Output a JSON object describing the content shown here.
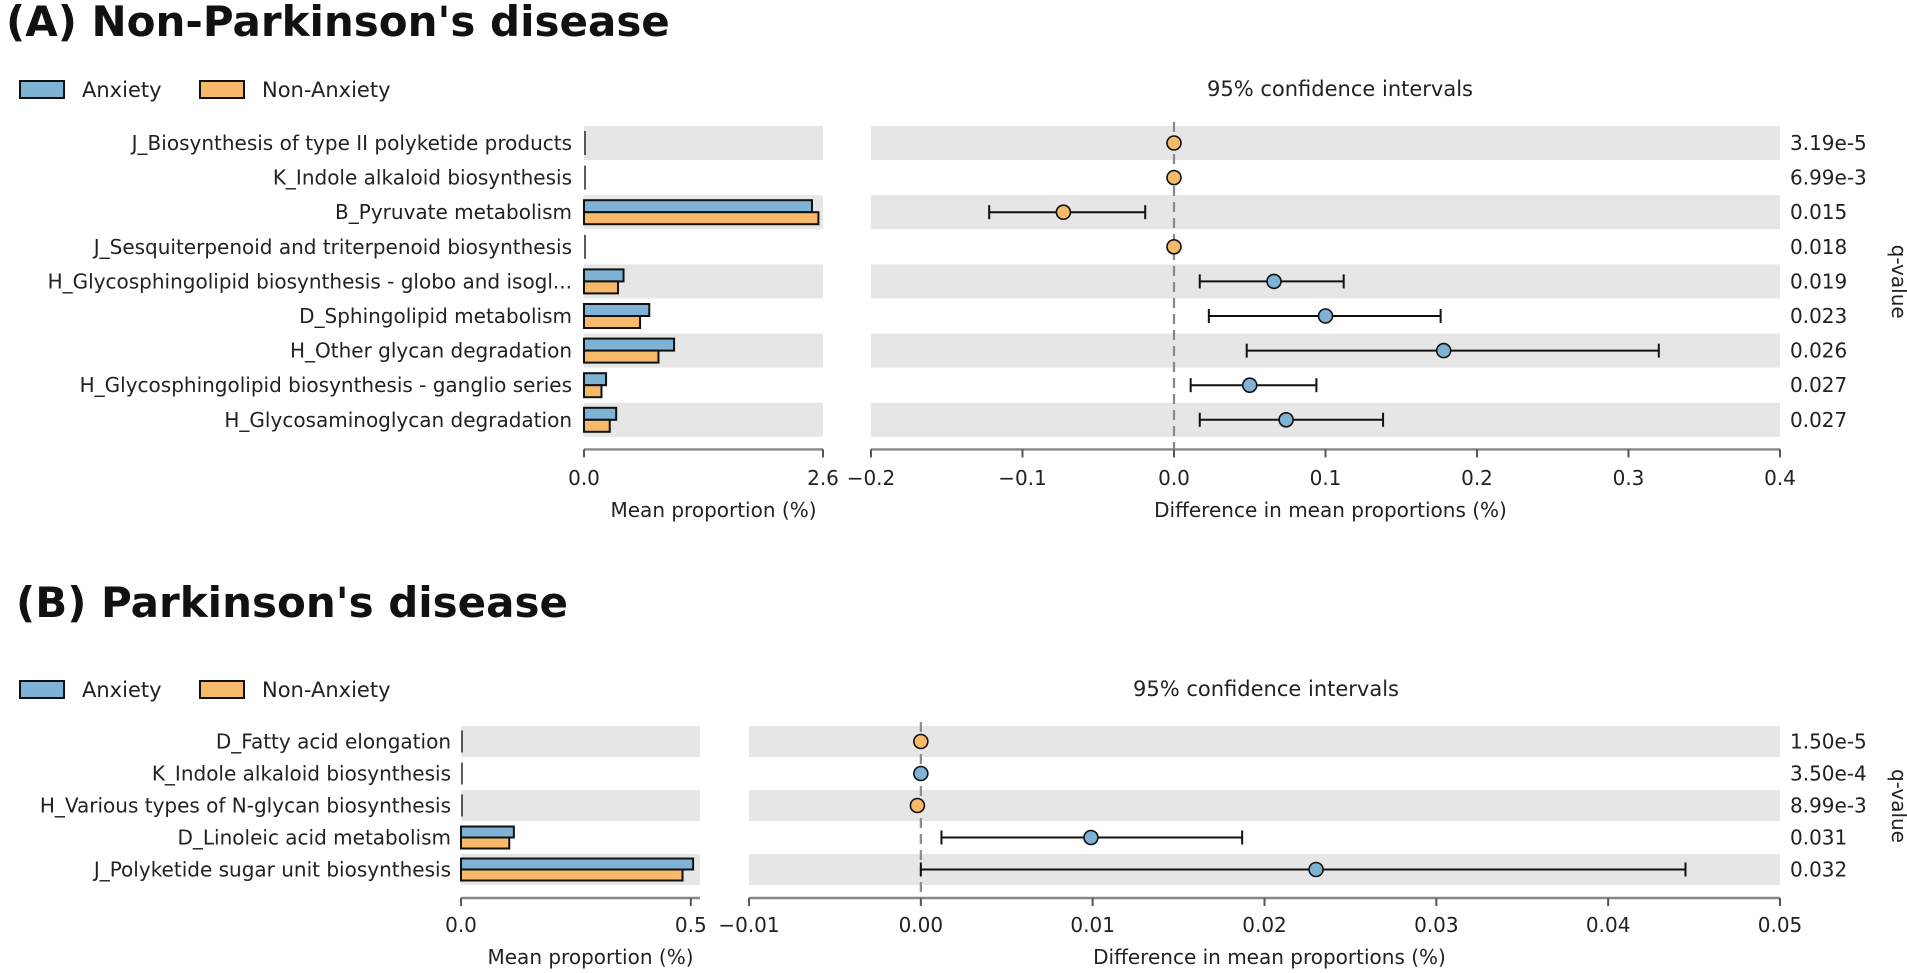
{
  "colors": {
    "anxiety": "#7fb3d5",
    "non_anxiety": "#f7b96a",
    "stripe": "#e6e6e6",
    "axis": "#888888",
    "dashed": "#888888"
  },
  "chart_data": [
    {
      "type": "bar+errorbar",
      "panel_title": "(A) Non-Parkinson's disease",
      "legend": [
        {
          "key": "anxiety",
          "label": "Anxiety"
        },
        {
          "key": "non_anxiety",
          "label": "Non-Anxiety"
        }
      ],
      "ci_title": "95% confidence intervals",
      "qvalue_label": "q-value",
      "bar_xlabel": "Mean proportion (%)",
      "bar_xlim": [
        0,
        2.6
      ],
      "bar_ticks": [
        "0.0",
        "2.6"
      ],
      "bar_tick_values": [
        0,
        2.6
      ],
      "diff_xlabel": "Difference in mean proportions (%)",
      "diff_xlim": [
        -0.2,
        0.4
      ],
      "diff_ticks": [
        "−0.2",
        "−0.1",
        "0.0",
        "0.1",
        "0.2",
        "0.3",
        "0.4"
      ],
      "diff_tick_values": [
        -0.2,
        -0.1,
        0,
        0.1,
        0.2,
        0.3,
        0.4
      ],
      "rows": [
        {
          "label": "J_Biosynthesis of type II polyketide products",
          "anxiety": 0.0,
          "non_anxiety": 0.0,
          "diff": 0.0,
          "ci": [
            0.0,
            0.0
          ],
          "group": "non_anxiety",
          "q": "3.19e-5"
        },
        {
          "label": "K_Indole alkaloid biosynthesis",
          "anxiety": 0.0,
          "non_anxiety": 0.0,
          "diff": 0.0,
          "ci": [
            0.0,
            0.0
          ],
          "group": "non_anxiety",
          "q": "6.99e-3"
        },
        {
          "label": "B_Pyruvate metabolism",
          "anxiety": 2.48,
          "non_anxiety": 2.55,
          "diff": -0.073,
          "ci": [
            -0.122,
            -0.019
          ],
          "group": "non_anxiety",
          "q": "0.015"
        },
        {
          "label": "J_Sesquiterpenoid and triterpenoid biosynthesis",
          "anxiety": 0.0,
          "non_anxiety": 0.0,
          "diff": 0.0,
          "ci": [
            0.0,
            0.0
          ],
          "group": "non_anxiety",
          "q": "0.018"
        },
        {
          "label": "H_Glycosphingolipid biosynthesis - globo and isogl...",
          "anxiety": 0.43,
          "non_anxiety": 0.37,
          "diff": 0.066,
          "ci": [
            0.017,
            0.112
          ],
          "group": "anxiety",
          "q": "0.019"
        },
        {
          "label": "D_Sphingolipid metabolism",
          "anxiety": 0.71,
          "non_anxiety": 0.61,
          "diff": 0.1,
          "ci": [
            0.023,
            0.176
          ],
          "group": "anxiety",
          "q": "0.023"
        },
        {
          "label": "H_Other glycan degradation",
          "anxiety": 0.98,
          "non_anxiety": 0.81,
          "diff": 0.178,
          "ci": [
            0.048,
            0.32
          ],
          "group": "anxiety",
          "q": "0.026"
        },
        {
          "label": "H_Glycosphingolipid biosynthesis - ganglio series",
          "anxiety": 0.24,
          "non_anxiety": 0.19,
          "diff": 0.05,
          "ci": [
            0.011,
            0.094
          ],
          "group": "anxiety",
          "q": "0.027"
        },
        {
          "label": "H_Glycosaminoglycan degradation",
          "anxiety": 0.35,
          "non_anxiety": 0.28,
          "diff": 0.074,
          "ci": [
            0.017,
            0.138
          ],
          "group": "anxiety",
          "q": "0.027"
        }
      ]
    },
    {
      "type": "bar+errorbar",
      "panel_title": "(B) Parkinson's disease",
      "legend": [
        {
          "key": "anxiety",
          "label": "Anxiety"
        },
        {
          "key": "non_anxiety",
          "label": "Non-Anxiety"
        }
      ],
      "ci_title": "95% confidence intervals",
      "qvalue_label": "q-value",
      "bar_xlabel": "Mean proportion (%)",
      "bar_xlim": [
        0,
        0.52
      ],
      "bar_ticks": [
        "0.0",
        "0.5"
      ],
      "bar_tick_values": [
        0,
        0.5
      ],
      "diff_xlabel": "Difference in mean proportions (%)",
      "diff_xlim": [
        -0.01,
        0.05
      ],
      "diff_ticks": [
        "−0.01",
        "0.00",
        "0.01",
        "0.02",
        "0.03",
        "0.04",
        "0.05"
      ],
      "diff_tick_values": [
        -0.01,
        0,
        0.01,
        0.02,
        0.03,
        0.04,
        0.05
      ],
      "rows": [
        {
          "label": "D_Fatty acid elongation",
          "anxiety": 0.0,
          "non_anxiety": 0.0,
          "diff": 0.0,
          "ci": [
            0.0,
            0.0
          ],
          "group": "non_anxiety",
          "q": "1.50e-5"
        },
        {
          "label": "K_Indole alkaloid biosynthesis",
          "anxiety": 0.0,
          "non_anxiety": 0.0,
          "diff": 0.0,
          "ci": [
            0.0,
            0.0
          ],
          "group": "anxiety",
          "q": "3.50e-4"
        },
        {
          "label": "H_Various types of N-glycan biosynthesis",
          "anxiety": 0.002,
          "non_anxiety": 0.002,
          "diff": -0.0002,
          "ci": [
            -0.0002,
            -0.0002
          ],
          "group": "non_anxiety",
          "q": "8.99e-3"
        },
        {
          "label": "D_Linoleic acid metabolism",
          "anxiety": 0.115,
          "non_anxiety": 0.105,
          "diff": 0.0099,
          "ci": [
            0.0012,
            0.0187
          ],
          "group": "anxiety",
          "q": "0.031"
        },
        {
          "label": "J_Polyketide sugar unit biosynthesis",
          "anxiety": 0.505,
          "non_anxiety": 0.482,
          "diff": 0.023,
          "ci": [
            0.0,
            0.0445
          ],
          "group": "anxiety",
          "q": "0.032"
        }
      ]
    }
  ]
}
